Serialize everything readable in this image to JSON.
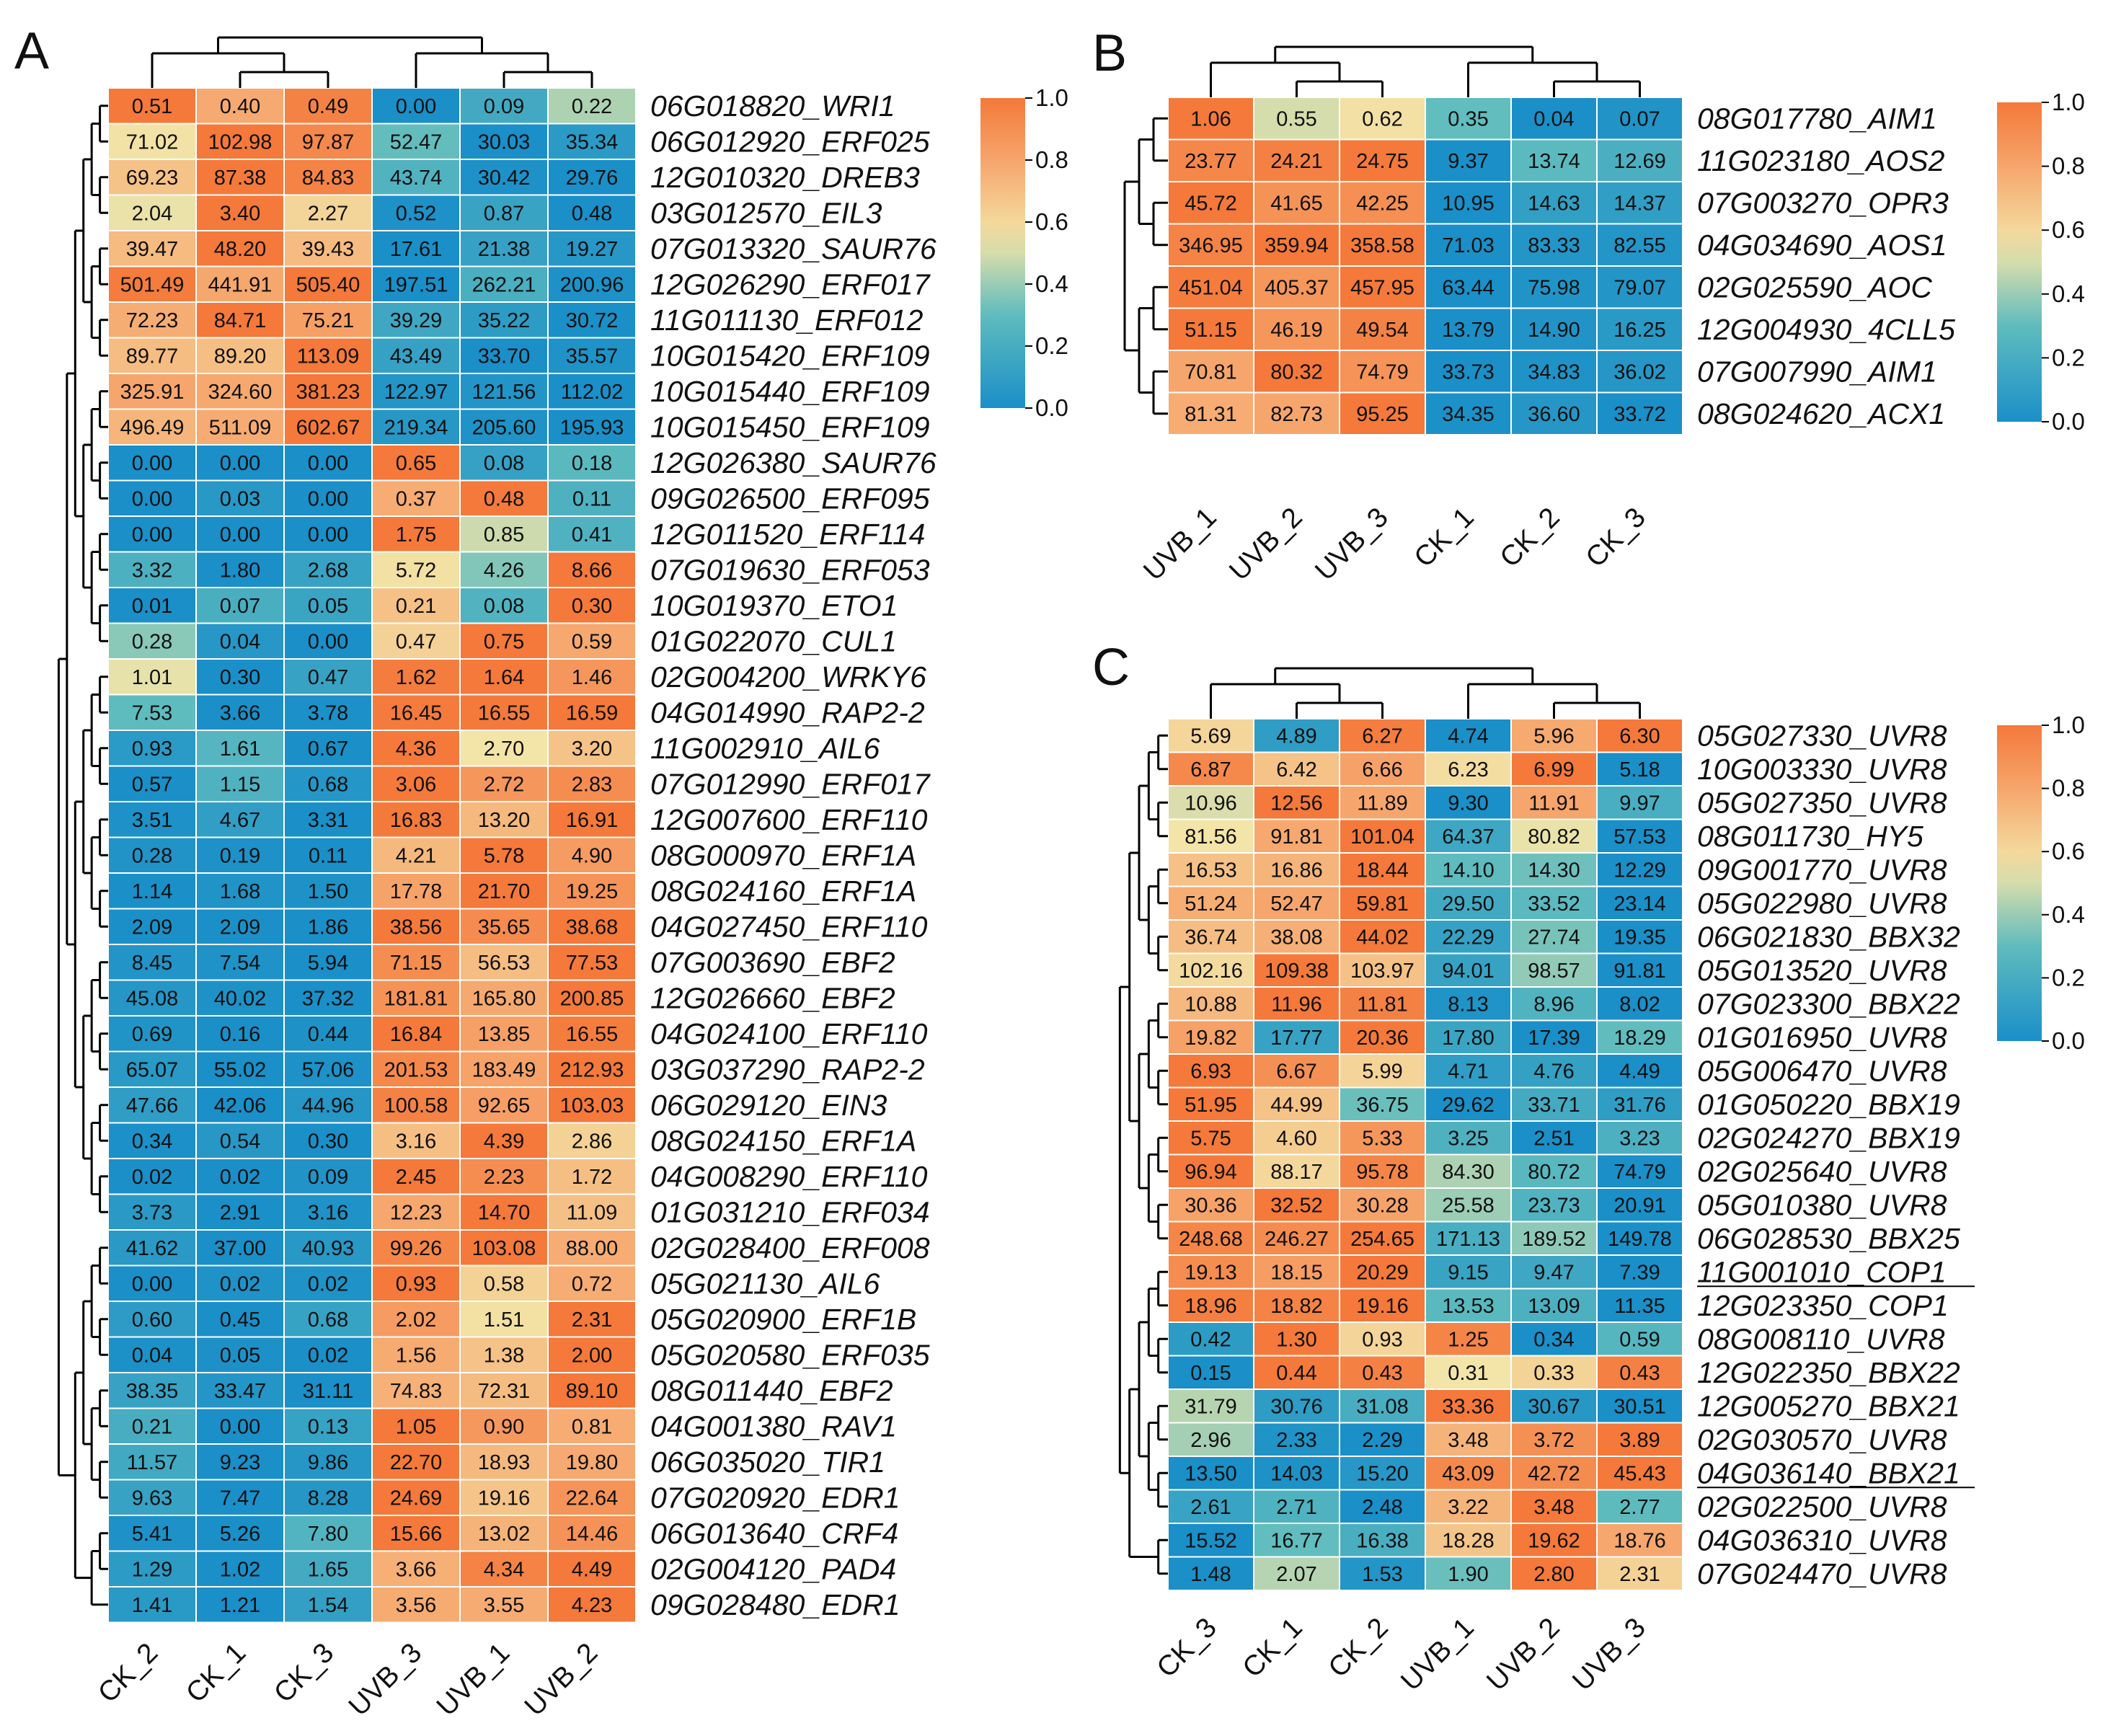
{
  "colors": {
    "low": "#1a8fc8",
    "mid_low": "#5fbcbe",
    "mid": "#f3e5a8",
    "mid_high": "#f6a56c",
    "high": "#f4793a"
  },
  "chart_data": [
    {
      "panel": "A",
      "type": "heatmap",
      "columns": [
        "CK_2",
        "CK_1",
        "CK_3",
        "UVB_3",
        "UVB_1",
        "UVB_2"
      ],
      "rows": [
        "06G018820_WRI1",
        "06G012920_ERF025",
        "12G010320_DREB3",
        "03G012570_EIL3",
        "07G013320_SAUR76",
        "12G026290_ERF017",
        "11G011130_ERF012",
        "10G015420_ERF109",
        "10G015440_ERF109",
        "10G015450_ERF109",
        "12G026380_SAUR76",
        "09G026500_ERF095",
        "12G011520_ERF114",
        "07G019630_ERF053",
        "10G019370_ETO1",
        "01G022070_CUL1",
        "02G004200_WRKY6",
        "04G014990_RAP2-2",
        "11G002910_AIL6",
        "07G012990_ERF017",
        "12G007600_ERF110",
        "08G000970_ERF1A",
        "08G024160_ERF1A",
        "04G027450_ERF110",
        "07G003690_EBF2",
        "12G026660_EBF2",
        "04G024100_ERF110",
        "03G037290_RAP2-2",
        "06G029120_EIN3",
        "08G024150_ERF1A",
        "04G008290_ERF110",
        "01G031210_ERF034",
        "02G028400_ERF008",
        "05G021130_AIL6",
        "05G020900_ERF1B",
        "05G020580_ERF035",
        "08G011440_EBF2",
        "04G001380_RAV1",
        "06G035020_TIR1",
        "07G020920_EDR1",
        "06G013640_CRF4",
        "02G004120_PAD4",
        "09G028480_EDR1"
      ],
      "values": [
        [
          "0.51",
          "0.40",
          "0.49",
          "0.00",
          "0.09",
          "0.22"
        ],
        [
          "71.02",
          "102.98",
          "97.87",
          "52.47",
          "30.03",
          "35.34"
        ],
        [
          "69.23",
          "87.38",
          "84.83",
          "43.74",
          "30.42",
          "29.76"
        ],
        [
          "2.04",
          "3.40",
          "2.27",
          "0.52",
          "0.87",
          "0.48"
        ],
        [
          "39.47",
          "48.20",
          "39.43",
          "17.61",
          "21.38",
          "19.27"
        ],
        [
          "501.49",
          "441.91",
          "505.40",
          "197.51",
          "262.21",
          "200.96"
        ],
        [
          "72.23",
          "84.71",
          "75.21",
          "39.29",
          "35.22",
          "30.72"
        ],
        [
          "89.77",
          "89.20",
          "113.09",
          "43.49",
          "33.70",
          "35.57"
        ],
        [
          "325.91",
          "324.60",
          "381.23",
          "122.97",
          "121.56",
          "112.02"
        ],
        [
          "496.49",
          "511.09",
          "602.67",
          "219.34",
          "205.60",
          "195.93"
        ],
        [
          "0.00",
          "0.00",
          "0.00",
          "0.65",
          "0.08",
          "0.18"
        ],
        [
          "0.00",
          "0.03",
          "0.00",
          "0.37",
          "0.48",
          "0.11"
        ],
        [
          "0.00",
          "0.00",
          "0.00",
          "1.75",
          "0.85",
          "0.41"
        ],
        [
          "3.32",
          "1.80",
          "2.68",
          "5.72",
          "4.26",
          "8.66"
        ],
        [
          "0.01",
          "0.07",
          "0.05",
          "0.21",
          "0.08",
          "0.30"
        ],
        [
          "0.28",
          "0.04",
          "0.00",
          "0.47",
          "0.75",
          "0.59"
        ],
        [
          "1.01",
          "0.30",
          "0.47",
          "1.62",
          "1.64",
          "1.46"
        ],
        [
          "7.53",
          "3.66",
          "3.78",
          "16.45",
          "16.55",
          "16.59"
        ],
        [
          "0.93",
          "1.61",
          "0.67",
          "4.36",
          "2.70",
          "3.20"
        ],
        [
          "0.57",
          "1.15",
          "0.68",
          "3.06",
          "2.72",
          "2.83"
        ],
        [
          "3.51",
          "4.67",
          "3.31",
          "16.83",
          "13.20",
          "16.91"
        ],
        [
          "0.28",
          "0.19",
          "0.11",
          "4.21",
          "5.78",
          "4.90"
        ],
        [
          "1.14",
          "1.68",
          "1.50",
          "17.78",
          "21.70",
          "19.25"
        ],
        [
          "2.09",
          "2.09",
          "1.86",
          "38.56",
          "35.65",
          "38.68"
        ],
        [
          "8.45",
          "7.54",
          "5.94",
          "71.15",
          "56.53",
          "77.53"
        ],
        [
          "45.08",
          "40.02",
          "37.32",
          "181.81",
          "165.80",
          "200.85"
        ],
        [
          "0.69",
          "0.16",
          "0.44",
          "16.84",
          "13.85",
          "16.55"
        ],
        [
          "65.07",
          "55.02",
          "57.06",
          "201.53",
          "183.49",
          "212.93"
        ],
        [
          "47.66",
          "42.06",
          "44.96",
          "100.58",
          "92.65",
          "103.03"
        ],
        [
          "0.34",
          "0.54",
          "0.30",
          "3.16",
          "4.39",
          "2.86"
        ],
        [
          "0.02",
          "0.02",
          "0.09",
          "2.45",
          "2.23",
          "1.72"
        ],
        [
          "3.73",
          "2.91",
          "3.16",
          "12.23",
          "14.70",
          "11.09"
        ],
        [
          "41.62",
          "37.00",
          "40.93",
          "99.26",
          "103.08",
          "88.00"
        ],
        [
          "0.00",
          "0.02",
          "0.02",
          "0.93",
          "0.58",
          "0.72"
        ],
        [
          "0.60",
          "0.45",
          "0.68",
          "2.02",
          "1.51",
          "2.31"
        ],
        [
          "0.04",
          "0.05",
          "0.02",
          "1.56",
          "1.38",
          "2.00"
        ],
        [
          "38.35",
          "33.47",
          "31.11",
          "74.83",
          "72.31",
          "89.10"
        ],
        [
          "0.21",
          "0.00",
          "0.13",
          "1.05",
          "0.90",
          "0.81"
        ],
        [
          "11.57",
          "9.23",
          "9.86",
          "22.70",
          "18.93",
          "19.80"
        ],
        [
          "9.63",
          "7.47",
          "8.28",
          "24.69",
          "19.16",
          "22.64"
        ],
        [
          "5.41",
          "5.26",
          "7.80",
          "15.66",
          "13.02",
          "14.46"
        ],
        [
          "1.29",
          "1.02",
          "1.65",
          "3.66",
          "4.34",
          "4.49"
        ],
        [
          "1.41",
          "1.21",
          "1.54",
          "3.56",
          "3.55",
          "4.23"
        ]
      ],
      "colorbar": {
        "min": 0.0,
        "max": 1.0,
        "ticks": [
          "0.0",
          "0.2",
          "0.4",
          "0.6",
          "0.8",
          "1.0"
        ]
      }
    },
    {
      "panel": "B",
      "type": "heatmap",
      "columns": [
        "UVB_1",
        "UVB_2",
        "UVB_3",
        "CK_1",
        "CK_2",
        "CK_3"
      ],
      "rows": [
        "08G017780_AIM1",
        "11G023180_AOS2",
        "07G003270_OPR3",
        "04G034690_AOS1",
        "02G025590_AOC",
        "12G004930_4CLL5",
        "07G007990_AIM1",
        "08G024620_ACX1"
      ],
      "values": [
        [
          "1.06",
          "0.55",
          "0.62",
          "0.35",
          "0.04",
          "0.07"
        ],
        [
          "23.77",
          "24.21",
          "24.75",
          "9.37",
          "13.74",
          "12.69"
        ],
        [
          "45.72",
          "41.65",
          "42.25",
          "10.95",
          "14.63",
          "14.37"
        ],
        [
          "346.95",
          "359.94",
          "358.58",
          "71.03",
          "83.33",
          "82.55"
        ],
        [
          "451.04",
          "405.37",
          "457.95",
          "63.44",
          "75.98",
          "79.07"
        ],
        [
          "51.15",
          "46.19",
          "49.54",
          "13.79",
          "14.90",
          "16.25"
        ],
        [
          "70.81",
          "80.32",
          "74.79",
          "33.73",
          "34.83",
          "36.02"
        ],
        [
          "81.31",
          "82.73",
          "95.25",
          "34.35",
          "36.60",
          "33.72"
        ]
      ],
      "colorbar": {
        "min": 0.0,
        "max": 1.0,
        "ticks": [
          "0.0",
          "0.2",
          "0.4",
          "0.6",
          "0.8",
          "1.0"
        ]
      }
    },
    {
      "panel": "C",
      "type": "heatmap",
      "columns": [
        "CK_3",
        "CK_1",
        "CK_2",
        "UVB_1",
        "UVB_2",
        "UVB_3"
      ],
      "rows": [
        "05G027330_UVR8",
        "10G003330_UVR8",
        "05G027350_UVR8",
        "08G011730_HY5",
        "09G001770_UVR8",
        "05G022980_UVR8",
        "06G021830_BBX32",
        "05G013520_UVR8",
        "07G023300_BBX22",
        "01G016950_UVR8",
        "05G006470_UVR8",
        "01G050220_BBX19",
        "02G024270_BBX19",
        "02G025640_UVR8",
        "05G010380_UVR8",
        "06G028530_BBX25",
        "11G001010_COP1",
        "12G023350_COP1",
        "08G008110_UVR8",
        "12G022350_BBX22",
        "12G005270_BBX21",
        "02G030570_UVR8",
        "04G036140_BBX21",
        "02G022500_UVR8",
        "04G036310_UVR8",
        "07G024470_UVR8"
      ],
      "underlined_rows": [
        "11G001010_COP1",
        "04G036140_BBX21"
      ],
      "values": [
        [
          "5.69",
          "4.89",
          "6.27",
          "4.74",
          "5.96",
          "6.30"
        ],
        [
          "6.87",
          "6.42",
          "6.66",
          "6.23",
          "6.99",
          "5.18"
        ],
        [
          "10.96",
          "12.56",
          "11.89",
          "9.30",
          "11.91",
          "9.97"
        ],
        [
          "81.56",
          "91.81",
          "101.04",
          "64.37",
          "80.82",
          "57.53"
        ],
        [
          "16.53",
          "16.86",
          "18.44",
          "14.10",
          "14.30",
          "12.29"
        ],
        [
          "51.24",
          "52.47",
          "59.81",
          "29.50",
          "33.52",
          "23.14"
        ],
        [
          "36.74",
          "38.08",
          "44.02",
          "22.29",
          "27.74",
          "19.35"
        ],
        [
          "102.16",
          "109.38",
          "103.97",
          "94.01",
          "98.57",
          "91.81"
        ],
        [
          "10.88",
          "11.96",
          "11.81",
          "8.13",
          "8.96",
          "8.02"
        ],
        [
          "19.82",
          "17.77",
          "20.36",
          "17.80",
          "17.39",
          "18.29"
        ],
        [
          "6.93",
          "6.67",
          "5.99",
          "4.71",
          "4.76",
          "4.49"
        ],
        [
          "51.95",
          "44.99",
          "36.75",
          "29.62",
          "33.71",
          "31.76"
        ],
        [
          "5.75",
          "4.60",
          "5.33",
          "3.25",
          "2.51",
          "3.23"
        ],
        [
          "96.94",
          "88.17",
          "95.78",
          "84.30",
          "80.72",
          "74.79"
        ],
        [
          "30.36",
          "32.52",
          "30.28",
          "25.58",
          "23.73",
          "20.91"
        ],
        [
          "248.68",
          "246.27",
          "254.65",
          "171.13",
          "189.52",
          "149.78"
        ],
        [
          "19.13",
          "18.15",
          "20.29",
          "9.15",
          "9.47",
          "7.39"
        ],
        [
          "18.96",
          "18.82",
          "19.16",
          "13.53",
          "13.09",
          "11.35"
        ],
        [
          "0.42",
          "1.30",
          "0.93",
          "1.25",
          "0.34",
          "0.59"
        ],
        [
          "0.15",
          "0.44",
          "0.43",
          "0.31",
          "0.33",
          "0.43"
        ],
        [
          "31.79",
          "30.76",
          "31.08",
          "33.36",
          "30.67",
          "30.51"
        ],
        [
          "2.96",
          "2.33",
          "2.29",
          "3.48",
          "3.72",
          "3.89"
        ],
        [
          "13.50",
          "14.03",
          "15.20",
          "43.09",
          "42.72",
          "45.43"
        ],
        [
          "2.61",
          "2.71",
          "2.48",
          "3.22",
          "3.48",
          "2.77"
        ],
        [
          "15.52",
          "16.77",
          "16.38",
          "18.28",
          "19.62",
          "18.76"
        ],
        [
          "1.48",
          "2.07",
          "1.53",
          "1.90",
          "2.80",
          "2.31"
        ]
      ],
      "colorbar": {
        "min": 0.0,
        "max": 1.0,
        "ticks": [
          "0.0",
          "0.2",
          "0.4",
          "0.6",
          "0.8",
          "1.0"
        ]
      }
    }
  ]
}
